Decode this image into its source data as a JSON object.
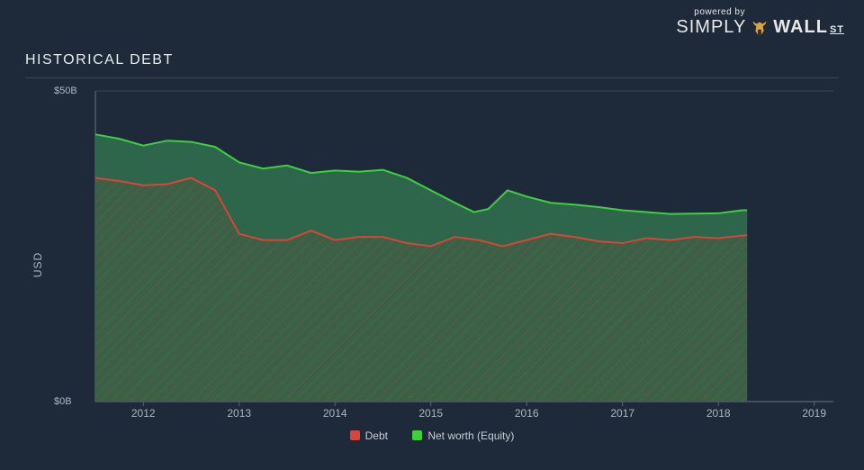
{
  "branding": {
    "powered": "powered by",
    "simply": "SIMPLY",
    "wall": "WALL",
    "st": "ST"
  },
  "title": "HISTORICAL DEBT",
  "chart": {
    "type": "area",
    "y_axis_label": "USD",
    "background_color": "#1e2a3a",
    "grid_color": "#3a4655",
    "axis_color": "#5a6675",
    "text_color": "#aeb6bf",
    "x_range": [
      2011.5,
      2019.2
    ],
    "y_range": [
      0,
      50
    ],
    "y_ticks": [
      {
        "v": 0,
        "label": "$0B"
      },
      {
        "v": 50,
        "label": "$50B"
      }
    ],
    "x_ticks": [
      2012,
      2013,
      2014,
      2015,
      2016,
      2017,
      2018,
      2019
    ],
    "equity_data": [
      {
        "x": 2011.5,
        "y": 43.0
      },
      {
        "x": 2011.75,
        "y": 42.3
      },
      {
        "x": 2012.0,
        "y": 41.2
      },
      {
        "x": 2012.25,
        "y": 42.0
      },
      {
        "x": 2012.5,
        "y": 41.8
      },
      {
        "x": 2012.75,
        "y": 41.0
      },
      {
        "x": 2013.0,
        "y": 38.5
      },
      {
        "x": 2013.25,
        "y": 37.5
      },
      {
        "x": 2013.5,
        "y": 38.0
      },
      {
        "x": 2013.75,
        "y": 36.8
      },
      {
        "x": 2014.0,
        "y": 37.2
      },
      {
        "x": 2014.25,
        "y": 37.0
      },
      {
        "x": 2014.5,
        "y": 37.3
      },
      {
        "x": 2014.75,
        "y": 36.0
      },
      {
        "x": 2015.0,
        "y": 34.0
      },
      {
        "x": 2015.25,
        "y": 32.0
      },
      {
        "x": 2015.45,
        "y": 30.5
      },
      {
        "x": 2015.6,
        "y": 31.0
      },
      {
        "x": 2015.8,
        "y": 34.0
      },
      {
        "x": 2016.0,
        "y": 33.0
      },
      {
        "x": 2016.25,
        "y": 32.0
      },
      {
        "x": 2016.5,
        "y": 31.7
      },
      {
        "x": 2016.75,
        "y": 31.3
      },
      {
        "x": 2017.0,
        "y": 30.8
      },
      {
        "x": 2017.5,
        "y": 30.2
      },
      {
        "x": 2018.0,
        "y": 30.3
      },
      {
        "x": 2018.25,
        "y": 30.8
      },
      {
        "x": 2018.3,
        "y": 30.8
      }
    ],
    "debt_data": [
      {
        "x": 2011.5,
        "y": 36.0
      },
      {
        "x": 2011.75,
        "y": 35.5
      },
      {
        "x": 2012.0,
        "y": 34.8
      },
      {
        "x": 2012.25,
        "y": 35.0
      },
      {
        "x": 2012.5,
        "y": 36.0
      },
      {
        "x": 2012.75,
        "y": 34.0
      },
      {
        "x": 2013.0,
        "y": 27.0
      },
      {
        "x": 2013.25,
        "y": 26.0
      },
      {
        "x": 2013.5,
        "y": 26.0
      },
      {
        "x": 2013.75,
        "y": 27.5
      },
      {
        "x": 2014.0,
        "y": 26.0
      },
      {
        "x": 2014.25,
        "y": 26.5
      },
      {
        "x": 2014.5,
        "y": 26.5
      },
      {
        "x": 2014.75,
        "y": 25.5
      },
      {
        "x": 2015.0,
        "y": 25.0
      },
      {
        "x": 2015.25,
        "y": 26.5
      },
      {
        "x": 2015.5,
        "y": 26.0
      },
      {
        "x": 2015.75,
        "y": 25.0
      },
      {
        "x": 2016.0,
        "y": 26.0
      },
      {
        "x": 2016.25,
        "y": 27.0
      },
      {
        "x": 2016.5,
        "y": 26.5
      },
      {
        "x": 2016.75,
        "y": 25.8
      },
      {
        "x": 2017.0,
        "y": 25.5
      },
      {
        "x": 2017.25,
        "y": 26.3
      },
      {
        "x": 2017.5,
        "y": 26.0
      },
      {
        "x": 2017.75,
        "y": 26.5
      },
      {
        "x": 2018.0,
        "y": 26.3
      },
      {
        "x": 2018.3,
        "y": 26.8
      }
    ],
    "series": {
      "debt": {
        "label": "Debt",
        "line_color": "#d9443b",
        "fill_color": "#3f5a3e",
        "fill_opacity": 0.85,
        "hatch_color": "#6b5a48"
      },
      "equity": {
        "label": "Net worth (Equity)",
        "line_color": "#3fcf3f",
        "fill_color": "#2f6d4c",
        "fill_opacity": 0.9
      }
    }
  }
}
